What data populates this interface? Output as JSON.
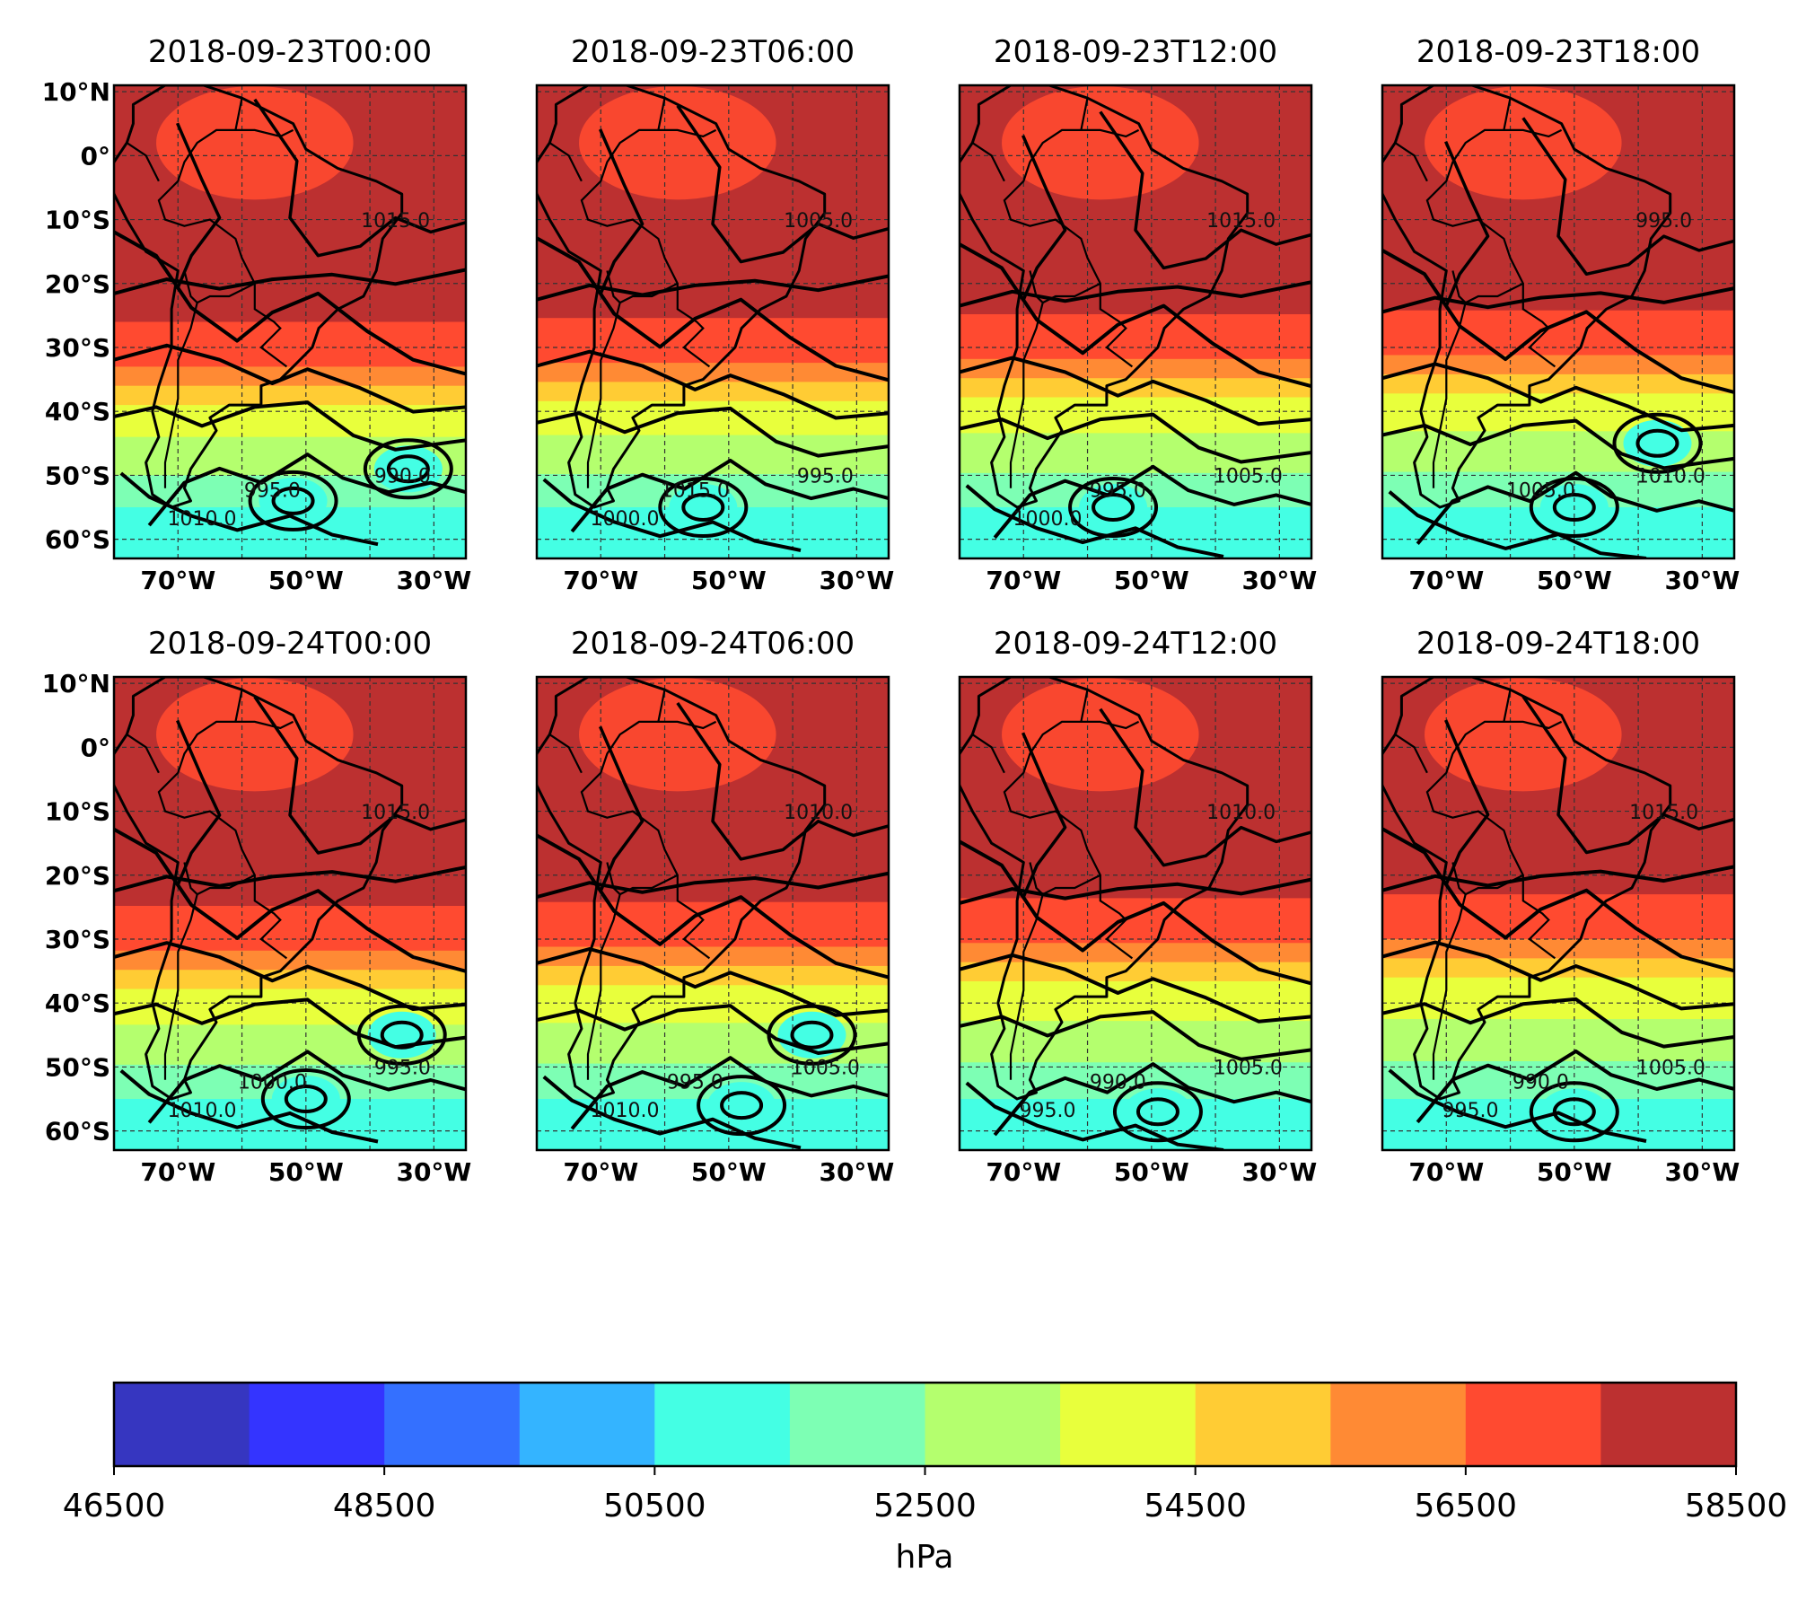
{
  "panels": [
    {
      "title": "2018-09-23T00:00",
      "isobar_labels": [
        "1015.0",
        "995.0",
        "990.0",
        "1010.0"
      ],
      "lows": [
        [
          -52,
          -54
        ],
        [
          -34,
          -49
        ]
      ]
    },
    {
      "title": "2018-09-23T06:00",
      "isobar_labels": [
        "1005.0",
        "1015.0",
        "995.0",
        "1000.0"
      ],
      "lows": [
        [
          -54,
          -55
        ]
      ]
    },
    {
      "title": "2018-09-23T12:00",
      "isobar_labels": [
        "1015.0",
        "995.0",
        "1005.0",
        "1000.0"
      ],
      "lows": [
        [
          -56,
          -55
        ]
      ]
    },
    {
      "title": "2018-09-23T18:00",
      "isobar_labels": [
        "995.0",
        "1005.0",
        "1010.0"
      ],
      "lows": [
        [
          -50,
          -55
        ],
        [
          -37,
          -45
        ]
      ]
    },
    {
      "title": "2018-09-24T00:00",
      "isobar_labels": [
        "1015.0",
        "1000.0",
        "995.0",
        "1010.0"
      ],
      "lows": [
        [
          -50,
          -55
        ],
        [
          -35,
          -45
        ]
      ]
    },
    {
      "title": "2018-09-24T06:00",
      "isobar_labels": [
        "1010.0",
        "995.0",
        "1005.0",
        "1010.0"
      ],
      "lows": [
        [
          -48,
          -56
        ],
        [
          -37,
          -45
        ]
      ]
    },
    {
      "title": "2018-09-24T12:00",
      "isobar_labels": [
        "1010.0",
        "990.0",
        "1005.0",
        "995.0"
      ],
      "lows": [
        [
          -49,
          -57
        ]
      ]
    },
    {
      "title": "2018-09-24T18:00",
      "isobar_labels": [
        "1015.0",
        "990.0",
        "1005.0",
        "995.0"
      ],
      "lows": [
        [
          -50,
          -57
        ]
      ]
    }
  ],
  "axes": {
    "lat_labels": [
      "10°N",
      "0°",
      "10°S",
      "20°S",
      "30°S",
      "40°S",
      "50°S",
      "60°S"
    ],
    "lat_values": [
      10,
      0,
      -10,
      -20,
      -30,
      -40,
      -50,
      -60
    ],
    "lon_labels": [
      "70°W",
      "50°W",
      "30°W"
    ],
    "lon_values": [
      -70,
      -50,
      -30
    ],
    "lon_range": [
      -80,
      -25
    ],
    "lat_range": [
      -63,
      11
    ],
    "gridlines": true
  },
  "colorbar": {
    "colormap": "jet",
    "levels": [
      46500,
      47500,
      48500,
      49500,
      50500,
      51500,
      52500,
      53500,
      54500,
      55500,
      56500,
      57500,
      58500
    ],
    "colors": [
      "#3636c0",
      "#3434ff",
      "#3470ff",
      "#34b4ff",
      "#44ffe4",
      "#7dffb4",
      "#b4ff6e",
      "#e8ff3c",
      "#ffcc34",
      "#ff8a34",
      "#ff4a30",
      "#bc3030"
    ],
    "tick_labels": [
      "46500",
      "48500",
      "50500",
      "52500",
      "54500",
      "56500",
      "58500"
    ],
    "label": "hPa"
  }
}
